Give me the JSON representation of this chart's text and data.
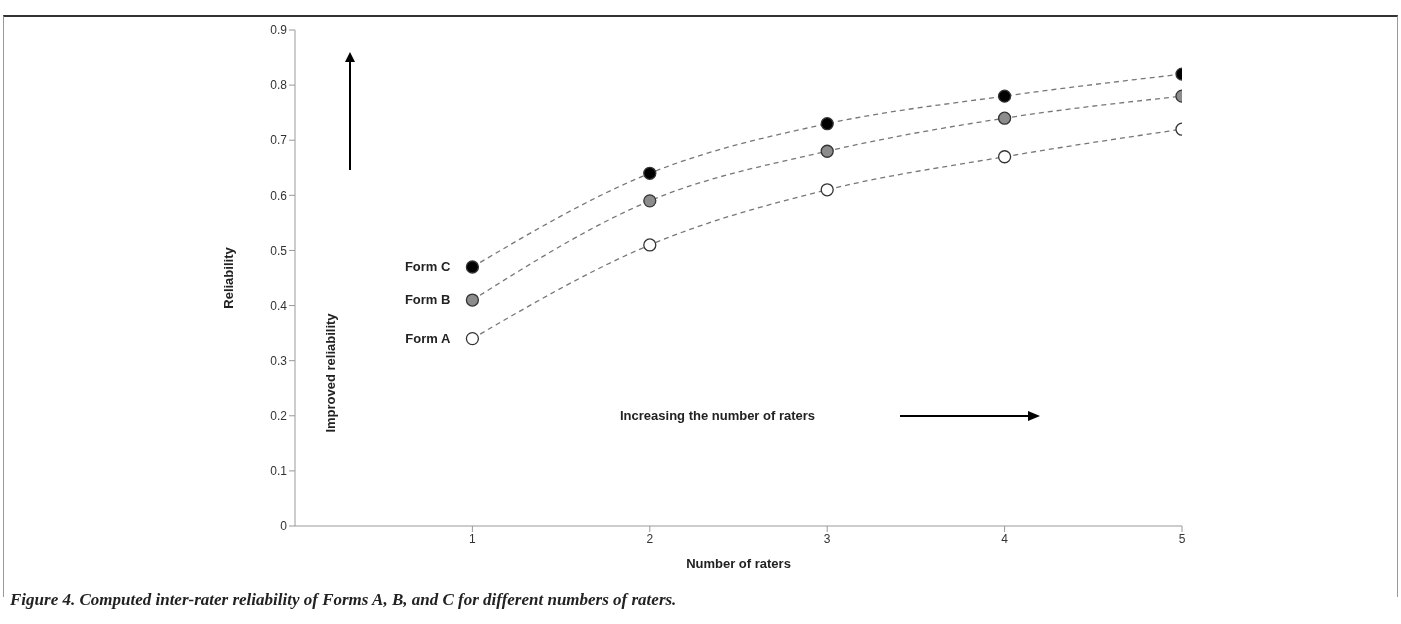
{
  "chart_data": {
    "type": "line",
    "xlabel": "Number of raters",
    "ylabel": "Reliability",
    "x": [
      1,
      2,
      3,
      4,
      5
    ],
    "xlim": [
      0,
      5
    ],
    "xticks": [
      1,
      2,
      3,
      4,
      5
    ],
    "ylim": [
      0,
      0.9
    ],
    "yticks": [
      0,
      0.1,
      0.2,
      0.3,
      0.4,
      0.5,
      0.6,
      0.7,
      0.8,
      0.9
    ],
    "series": [
      {
        "name": "Form C",
        "color": "#000000",
        "values": [
          0.47,
          0.64,
          0.73,
          0.78,
          0.82
        ]
      },
      {
        "name": "Form B",
        "color": "#8c8c8c",
        "values": [
          0.41,
          0.59,
          0.68,
          0.74,
          0.78
        ]
      },
      {
        "name": "Form A",
        "color": "#ffffff",
        "values": [
          0.34,
          0.51,
          0.61,
          0.67,
          0.72
        ]
      }
    ],
    "marker": "circle",
    "line_style": "dashed",
    "grid": false,
    "legend": false,
    "annotations": [
      "Improved reliability",
      "Increasing the number of raters",
      "Figure 4. Computed inter-rater reliability of Forms A, B, and C for different numbers of raters."
    ]
  }
}
